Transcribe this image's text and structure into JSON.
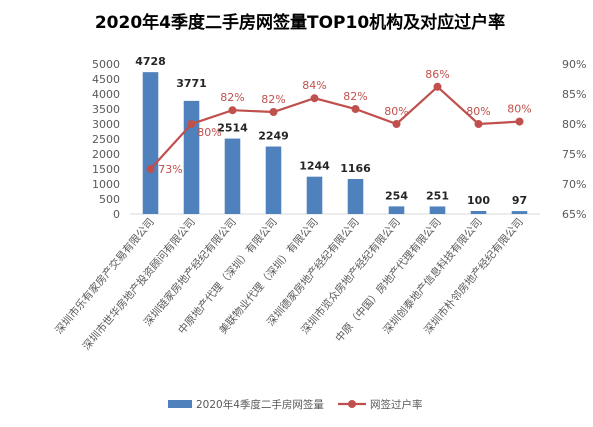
{
  "chart_data": {
    "type": "bar",
    "title": "2020年4季度二手房网签量TOP10机构及对应过户率",
    "categories": [
      "深圳市乐有家房产交易有限公司",
      "深圳市世华房地产投资顾问有限公司",
      "深圳链家房地产经纪有限公司",
      "中原地产代理（深圳）有限公司",
      "美联物业代理（深圳）有限公司",
      "深圳德家房地产经纪有限公司",
      "深圳市览众房地产经纪有限公司",
      "中原（中国）房地产代理有限公司",
      "深圳创泰地产信息科技有限公司",
      "深圳市朴邻房地产经纪有限公司"
    ],
    "series": [
      {
        "name": "2020年4季度二手房网签量",
        "type": "bar",
        "axis": "left",
        "color": "#4f81bd",
        "values": [
          4728,
          3771,
          2514,
          2249,
          1244,
          1166,
          254,
          251,
          100,
          97
        ],
        "labels": [
          "4728",
          "3771",
          "2514",
          "2249",
          "1244",
          "1166",
          "254",
          "251",
          "100",
          "97"
        ]
      },
      {
        "name": "网签过户率",
        "type": "line",
        "axis": "right",
        "color": "#c0504d",
        "values": [
          72.5,
          80.0,
          82.3,
          82.0,
          84.3,
          82.5,
          80.0,
          86.2,
          80.0,
          80.4
        ],
        "labels": [
          "73%",
          "80%",
          "82%",
          "82%",
          "84%",
          "82%",
          "80%",
          "86%",
          "80%",
          "80%"
        ]
      }
    ],
    "y_left": {
      "ylim": [
        0,
        5000
      ],
      "ticks": [
        "0",
        "500",
        "1000",
        "1500",
        "2000",
        "2500",
        "3000",
        "3500",
        "4000",
        "4500",
        "5000"
      ]
    },
    "y_right": {
      "ylim": [
        65,
        90
      ],
      "ticks": [
        "65%",
        "70%",
        "75%",
        "80%",
        "85%",
        "90%"
      ]
    },
    "grid": false,
    "legend": "bottom",
    "colors": {
      "bar": "#4f81bd",
      "line": "#c0504d",
      "axis_text": "#595959",
      "title": "#000000"
    }
  }
}
